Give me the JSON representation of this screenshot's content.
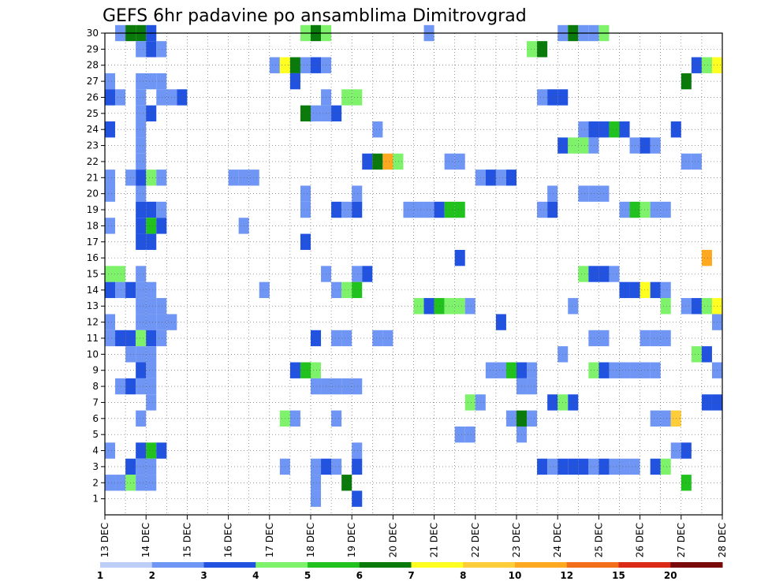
{
  "chart_data": {
    "type": "heatmap",
    "title": "GEFS 6hr padavine po ansamblima Dimitrovgrad",
    "xlabel": "",
    "ylabel": "",
    "x_ticks": [
      "13 DEC",
      "14 DEC",
      "15 DEC",
      "16 DEC",
      "17 DEC",
      "18 DEC",
      "19 DEC",
      "20 DEC",
      "21 DEC",
      "22 DEC",
      "23 DEC",
      "24 DEC",
      "25 DEC",
      "26 DEC",
      "27 DEC",
      "28 DEC"
    ],
    "xlim": [
      0,
      60
    ],
    "ylim": [
      0,
      30
    ],
    "y_ticks": [
      1,
      2,
      3,
      4,
      5,
      6,
      7,
      8,
      9,
      10,
      11,
      12,
      13,
      14,
      15,
      16,
      17,
      18,
      19,
      20,
      21,
      22,
      23,
      24,
      25,
      26,
      27,
      28,
      29,
      30
    ],
    "grid": true,
    "legend": {
      "placement": "bottom",
      "thresholds": [
        "1",
        "2",
        "3",
        "4",
        "5",
        "6",
        "7",
        "8",
        "10",
        "12",
        "15",
        "20"
      ],
      "colors": [
        "#bdcff8",
        "#6f96f4",
        "#2152e0",
        "#7ef26a",
        "#22c21e",
        "#0a7a0a",
        "#ffff22",
        "#ffcc3a",
        "#ffa820",
        "#f26e1a",
        "#dc2a18",
        "#7a0a0a"
      ]
    },
    "cells": [
      [
        30,
        1,
        1
      ],
      [
        30,
        2,
        5
      ],
      [
        30,
        3,
        5
      ],
      [
        30,
        4,
        2
      ],
      [
        30,
        19,
        3
      ],
      [
        30,
        20,
        5
      ],
      [
        30,
        21,
        3
      ],
      [
        30,
        31,
        1
      ],
      [
        30,
        44,
        1
      ],
      [
        30,
        45,
        5
      ],
      [
        30,
        46,
        1
      ],
      [
        30,
        47,
        1
      ],
      [
        30,
        48,
        3
      ],
      [
        29,
        3,
        1
      ],
      [
        29,
        4,
        2
      ],
      [
        29,
        5,
        1
      ],
      [
        29,
        41,
        3
      ],
      [
        29,
        42,
        5
      ],
      [
        28,
        16,
        1
      ],
      [
        28,
        17,
        6
      ],
      [
        28,
        18,
        5
      ],
      [
        28,
        19,
        1
      ],
      [
        28,
        20,
        2
      ],
      [
        28,
        21,
        1
      ],
      [
        28,
        57,
        2
      ],
      [
        28,
        58,
        3
      ],
      [
        28,
        59,
        6
      ],
      [
        27,
        0,
        1
      ],
      [
        27,
        3,
        1
      ],
      [
        27,
        4,
        1
      ],
      [
        27,
        5,
        1
      ],
      [
        27,
        18,
        2
      ],
      [
        27,
        56,
        5
      ],
      [
        26,
        0,
        2
      ],
      [
        26,
        1,
        1
      ],
      [
        26,
        3,
        1
      ],
      [
        26,
        5,
        1
      ],
      [
        26,
        6,
        1
      ],
      [
        26,
        7,
        2
      ],
      [
        26,
        21,
        1
      ],
      [
        26,
        23,
        3
      ],
      [
        26,
        24,
        3
      ],
      [
        26,
        42,
        1
      ],
      [
        26,
        43,
        2
      ],
      [
        26,
        44,
        2
      ],
      [
        25,
        3,
        1
      ],
      [
        25,
        4,
        2
      ],
      [
        25,
        19,
        5
      ],
      [
        25,
        20,
        1
      ],
      [
        25,
        21,
        1
      ],
      [
        25,
        22,
        2
      ],
      [
        24,
        0,
        2
      ],
      [
        24,
        3,
        1
      ],
      [
        24,
        26,
        1
      ],
      [
        24,
        46,
        1
      ],
      [
        24,
        47,
        2
      ],
      [
        24,
        48,
        2
      ],
      [
        24,
        49,
        4
      ],
      [
        24,
        50,
        2
      ],
      [
        24,
        55,
        2
      ],
      [
        23,
        3,
        1
      ],
      [
        23,
        44,
        2
      ],
      [
        23,
        45,
        3
      ],
      [
        23,
        46,
        3
      ],
      [
        23,
        47,
        1
      ],
      [
        23,
        51,
        1
      ],
      [
        23,
        52,
        2
      ],
      [
        23,
        53,
        1
      ],
      [
        22,
        3,
        1
      ],
      [
        22,
        25,
        2
      ],
      [
        22,
        26,
        5
      ],
      [
        22,
        27,
        8
      ],
      [
        22,
        28,
        3
      ],
      [
        22,
        33,
        1
      ],
      [
        22,
        34,
        1
      ],
      [
        22,
        56,
        1
      ],
      [
        22,
        57,
        1
      ],
      [
        21,
        0,
        1
      ],
      [
        21,
        2,
        1
      ],
      [
        21,
        3,
        2
      ],
      [
        21,
        4,
        3
      ],
      [
        21,
        5,
        1
      ],
      [
        21,
        12,
        1
      ],
      [
        21,
        13,
        1
      ],
      [
        21,
        14,
        1
      ],
      [
        21,
        36,
        1
      ],
      [
        21,
        37,
        2
      ],
      [
        21,
        38,
        1
      ],
      [
        21,
        39,
        2
      ],
      [
        20,
        0,
        1
      ],
      [
        20,
        3,
        1
      ],
      [
        20,
        19,
        1
      ],
      [
        20,
        24,
        1
      ],
      [
        20,
        43,
        1
      ],
      [
        20,
        46,
        1
      ],
      [
        20,
        47,
        1
      ],
      [
        20,
        48,
        1
      ],
      [
        19,
        3,
        2
      ],
      [
        19,
        4,
        2
      ],
      [
        19,
        5,
        1
      ],
      [
        19,
        19,
        1
      ],
      [
        19,
        22,
        2
      ],
      [
        19,
        23,
        1
      ],
      [
        19,
        24,
        2
      ],
      [
        19,
        29,
        1
      ],
      [
        19,
        30,
        1
      ],
      [
        19,
        31,
        1
      ],
      [
        19,
        32,
        2
      ],
      [
        19,
        33,
        4
      ],
      [
        19,
        34,
        4
      ],
      [
        19,
        42,
        1
      ],
      [
        19,
        43,
        2
      ],
      [
        19,
        50,
        1
      ],
      [
        19,
        51,
        4
      ],
      [
        19,
        52,
        3
      ],
      [
        19,
        53,
        1
      ],
      [
        19,
        54,
        1
      ],
      [
        18,
        0,
        1
      ],
      [
        18,
        3,
        2
      ],
      [
        18,
        4,
        4
      ],
      [
        18,
        5,
        2
      ],
      [
        18,
        13,
        1
      ],
      [
        17,
        3,
        2
      ],
      [
        17,
        4,
        2
      ],
      [
        17,
        19,
        2
      ],
      [
        16,
        34,
        2
      ],
      [
        16,
        58,
        8
      ],
      [
        15,
        0,
        3
      ],
      [
        15,
        1,
        3
      ],
      [
        15,
        3,
        1
      ],
      [
        15,
        21,
        1
      ],
      [
        15,
        24,
        1
      ],
      [
        15,
        25,
        2
      ],
      [
        15,
        46,
        3
      ],
      [
        15,
        47,
        2
      ],
      [
        15,
        48,
        2
      ],
      [
        15,
        49,
        1
      ],
      [
        14,
        0,
        2
      ],
      [
        14,
        1,
        1
      ],
      [
        14,
        2,
        2
      ],
      [
        14,
        3,
        1
      ],
      [
        14,
        4,
        1
      ],
      [
        14,
        15,
        1
      ],
      [
        14,
        22,
        1
      ],
      [
        14,
        23,
        3
      ],
      [
        14,
        24,
        4
      ],
      [
        14,
        50,
        2
      ],
      [
        14,
        51,
        2
      ],
      [
        14,
        52,
        6
      ],
      [
        14,
        53,
        2
      ],
      [
        14,
        54,
        1
      ],
      [
        13,
        3,
        1
      ],
      [
        13,
        4,
        1
      ],
      [
        13,
        5,
        1
      ],
      [
        13,
        30,
        3
      ],
      [
        13,
        31,
        2
      ],
      [
        13,
        32,
        4
      ],
      [
        13,
        33,
        3
      ],
      [
        13,
        34,
        3
      ],
      [
        13,
        35,
        1
      ],
      [
        13,
        45,
        1
      ],
      [
        13,
        54,
        3
      ],
      [
        13,
        56,
        1
      ],
      [
        13,
        57,
        2
      ],
      [
        13,
        58,
        3
      ],
      [
        13,
        59,
        6
      ],
      [
        12,
        0,
        1
      ],
      [
        12,
        3,
        1
      ],
      [
        12,
        4,
        1
      ],
      [
        12,
        5,
        1
      ],
      [
        12,
        6,
        1
      ],
      [
        12,
        38,
        2
      ],
      [
        12,
        59,
        1
      ],
      [
        11,
        0,
        1
      ],
      [
        11,
        1,
        2
      ],
      [
        11,
        2,
        2
      ],
      [
        11,
        3,
        3
      ],
      [
        11,
        4,
        2
      ],
      [
        11,
        5,
        1
      ],
      [
        11,
        20,
        2
      ],
      [
        11,
        22,
        1
      ],
      [
        11,
        23,
        1
      ],
      [
        11,
        26,
        1
      ],
      [
        11,
        27,
        1
      ],
      [
        11,
        47,
        1
      ],
      [
        11,
        48,
        1
      ],
      [
        11,
        52,
        1
      ],
      [
        11,
        53,
        1
      ],
      [
        11,
        54,
        1
      ],
      [
        10,
        2,
        1
      ],
      [
        10,
        3,
        1
      ],
      [
        10,
        4,
        1
      ],
      [
        10,
        44,
        1
      ],
      [
        10,
        57,
        3
      ],
      [
        10,
        58,
        2
      ],
      [
        9,
        3,
        2
      ],
      [
        9,
        4,
        1
      ],
      [
        9,
        18,
        2
      ],
      [
        9,
        19,
        4
      ],
      [
        9,
        20,
        3
      ],
      [
        9,
        37,
        1
      ],
      [
        9,
        38,
        1
      ],
      [
        9,
        39,
        4
      ],
      [
        9,
        40,
        2
      ],
      [
        9,
        41,
        1
      ],
      [
        9,
        47,
        3
      ],
      [
        9,
        48,
        2
      ],
      [
        9,
        49,
        1
      ],
      [
        9,
        50,
        1
      ],
      [
        9,
        51,
        1
      ],
      [
        9,
        52,
        1
      ],
      [
        9,
        53,
        1
      ],
      [
        9,
        59,
        1
      ],
      [
        8,
        1,
        1
      ],
      [
        8,
        2,
        2
      ],
      [
        8,
        3,
        1
      ],
      [
        8,
        4,
        1
      ],
      [
        8,
        20,
        1
      ],
      [
        8,
        21,
        1
      ],
      [
        8,
        22,
        1
      ],
      [
        8,
        23,
        1
      ],
      [
        8,
        24,
        1
      ],
      [
        8,
        40,
        1
      ],
      [
        8,
        41,
        1
      ],
      [
        7,
        4,
        1
      ],
      [
        7,
        35,
        3
      ],
      [
        7,
        36,
        1
      ],
      [
        7,
        43,
        2
      ],
      [
        7,
        44,
        3
      ],
      [
        7,
        45,
        2
      ],
      [
        7,
        58,
        2
      ],
      [
        7,
        59,
        2
      ],
      [
        6,
        3,
        1
      ],
      [
        6,
        17,
        3
      ],
      [
        6,
        18,
        1
      ],
      [
        6,
        22,
        1
      ],
      [
        6,
        39,
        1
      ],
      [
        6,
        40,
        5
      ],
      [
        6,
        41,
        1
      ],
      [
        6,
        53,
        1
      ],
      [
        6,
        54,
        1
      ],
      [
        6,
        55,
        7
      ],
      [
        5,
        34,
        1
      ],
      [
        5,
        35,
        1
      ],
      [
        5,
        40,
        1
      ],
      [
        4,
        0,
        1
      ],
      [
        4,
        3,
        2
      ],
      [
        4,
        4,
        4
      ],
      [
        4,
        5,
        2
      ],
      [
        4,
        24,
        1
      ],
      [
        4,
        55,
        1
      ],
      [
        4,
        56,
        2
      ],
      [
        3,
        2,
        2
      ],
      [
        3,
        3,
        1
      ],
      [
        3,
        4,
        1
      ],
      [
        3,
        17,
        1
      ],
      [
        3,
        20,
        1
      ],
      [
        3,
        21,
        2
      ],
      [
        3,
        22,
        1
      ],
      [
        3,
        24,
        2
      ],
      [
        3,
        42,
        2
      ],
      [
        3,
        43,
        1
      ],
      [
        3,
        44,
        2
      ],
      [
        3,
        45,
        2
      ],
      [
        3,
        46,
        2
      ],
      [
        3,
        47,
        1
      ],
      [
        3,
        48,
        2
      ],
      [
        3,
        49,
        1
      ],
      [
        3,
        50,
        1
      ],
      [
        3,
        51,
        1
      ],
      [
        3,
        53,
        2
      ],
      [
        3,
        54,
        3
      ],
      [
        2,
        0,
        1
      ],
      [
        2,
        1,
        1
      ],
      [
        2,
        2,
        3
      ],
      [
        2,
        3,
        1
      ],
      [
        2,
        4,
        1
      ],
      [
        2,
        20,
        1
      ],
      [
        2,
        23,
        5
      ],
      [
        2,
        56,
        4
      ],
      [
        1,
        20,
        1
      ],
      [
        1,
        24,
        2
      ]
    ]
  }
}
